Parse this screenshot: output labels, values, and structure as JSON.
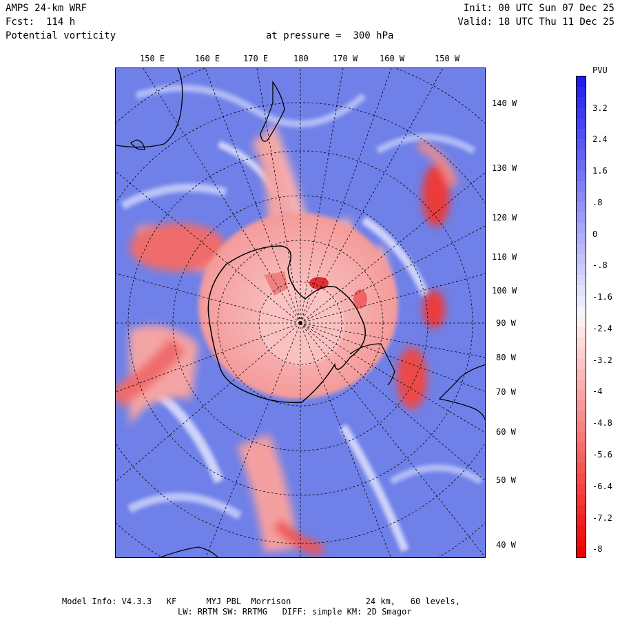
{
  "header": {
    "model": "AMPS 24-km WRF",
    "forecast": "Fcst:  114 h",
    "field": "Potential vorticity",
    "level": "at pressure =  300 hPa",
    "init": "Init: 00 UTC Sun 07 Dec 25",
    "valid": "Valid: 18 UTC Thu 11 Dec 25"
  },
  "map": {
    "top_lon_labels": [
      "150 E",
      "160 E",
      "170 E",
      "180",
      "170 W",
      "160 W",
      "150 W"
    ],
    "right_lon_labels": [
      "140 W",
      "130 W",
      "120 W",
      "110 W",
      "100 W",
      "90 W",
      "80 W",
      "70 W",
      "60 W",
      "50 W",
      "40 W"
    ],
    "colors": {
      "background_blue": "#6f7fe8",
      "antarctica_red": "#f4a6a6",
      "strong_red": "#ef3b3b",
      "white_band": "#f5f5ff"
    }
  },
  "colorbar": {
    "title": "PVU",
    "labels": [
      "3.2",
      "2.4",
      "1.6",
      ".8",
      "0",
      "-.8",
      "-1.6",
      "-2.4",
      "-3.2",
      "-4",
      "-4.8",
      "-5.6",
      "-6.4",
      "-7.2",
      "-8"
    ],
    "top_color": "#1e1ef0",
    "bottom_color": "#f00000"
  },
  "footer": {
    "line1": "Model Info: V4.3.3   KF      MYJ PBL  Morrison               24 km,   60 levels,",
    "line2": "LW: RRTM SW: RRTMG   DIFF: simple KM: 2D Smagor"
  }
}
